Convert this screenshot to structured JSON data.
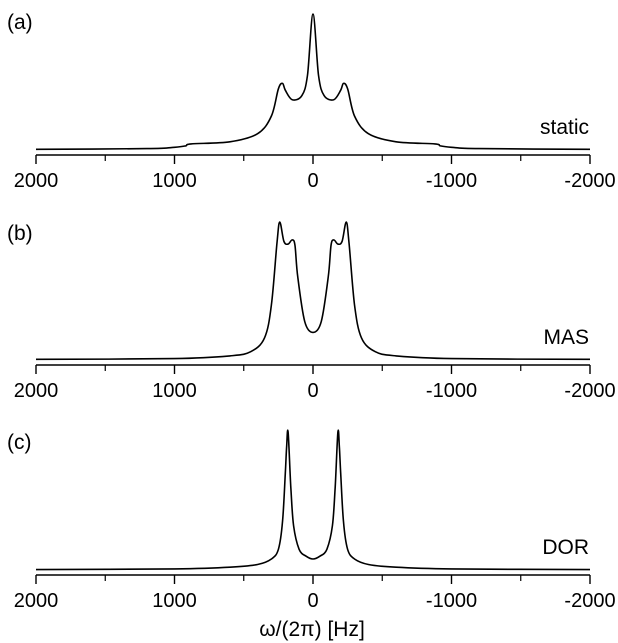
{
  "chart_data": [
    {
      "type": "line",
      "panel": "(a)",
      "trace_label": "static",
      "xlim": [
        2000,
        -2000
      ],
      "xticks": [
        2000,
        1000,
        0,
        -1000,
        -2000
      ],
      "x": [
        -2000,
        -1200,
        -1000,
        -920,
        -880,
        -600,
        -400,
        -300,
        -250,
        -220,
        -200,
        -150,
        -80,
        -40,
        0,
        40,
        80,
        150,
        200,
        220,
        250,
        300,
        400,
        600,
        880,
        920,
        1000,
        1200,
        2000
      ],
      "y": [
        0.005,
        0.01,
        0.02,
        0.03,
        0.045,
        0.06,
        0.12,
        0.25,
        0.45,
        0.49,
        0.44,
        0.37,
        0.4,
        0.55,
        1.0,
        0.55,
        0.4,
        0.37,
        0.44,
        0.49,
        0.45,
        0.25,
        0.12,
        0.06,
        0.045,
        0.03,
        0.02,
        0.01,
        0.005
      ]
    },
    {
      "type": "line",
      "panel": "(b)",
      "trace_label": "MAS",
      "xlim": [
        2000,
        -2000
      ],
      "xticks": [
        2000,
        1000,
        0,
        -1000,
        -2000
      ],
      "x": [
        -2000,
        -1000,
        -600,
        -450,
        -350,
        -300,
        -260,
        -240,
        -210,
        -180,
        -150,
        -130,
        -110,
        -60,
        0,
        60,
        110,
        130,
        150,
        180,
        210,
        240,
        260,
        300,
        350,
        450,
        600,
        1000,
        2000
      ],
      "y": [
        0.005,
        0.01,
        0.03,
        0.06,
        0.16,
        0.4,
        0.85,
        1.0,
        0.86,
        0.84,
        0.87,
        0.83,
        0.6,
        0.28,
        0.2,
        0.28,
        0.6,
        0.83,
        0.87,
        0.84,
        0.86,
        1.0,
        0.85,
        0.4,
        0.16,
        0.06,
        0.03,
        0.01,
        0.005
      ]
    },
    {
      "type": "line",
      "panel": "(c)",
      "trace_label": "DOR",
      "xlim": [
        2000,
        -2000
      ],
      "xticks": [
        2000,
        1000,
        0,
        -1000,
        -2000
      ],
      "x": [
        -2000,
        -1000,
        -600,
        -400,
        -300,
        -250,
        -220,
        -200,
        -190,
        -180,
        -160,
        -140,
        -100,
        -50,
        0,
        50,
        100,
        140,
        160,
        180,
        190,
        200,
        220,
        250,
        300,
        400,
        600,
        1000,
        2000
      ],
      "y": [
        0.003,
        0.008,
        0.02,
        0.04,
        0.08,
        0.15,
        0.35,
        0.7,
        0.9,
        1.0,
        0.6,
        0.32,
        0.15,
        0.1,
        0.08,
        0.1,
        0.15,
        0.32,
        0.6,
        1.0,
        0.9,
        0.7,
        0.35,
        0.15,
        0.08,
        0.04,
        0.02,
        0.008,
        0.003
      ]
    }
  ],
  "xlabel": "ω/(2π) [Hz]"
}
